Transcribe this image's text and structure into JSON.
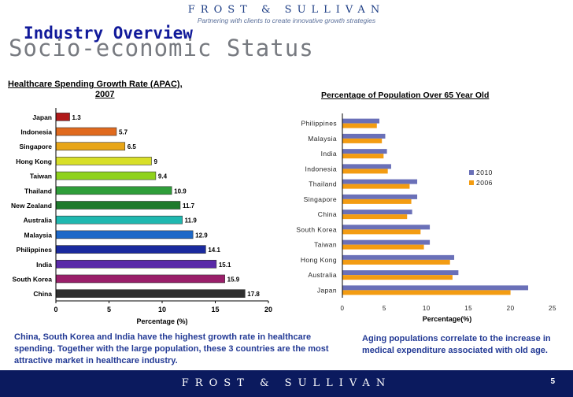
{
  "header": {
    "brand": "FROST & SULLIVAN",
    "tagline": "Partnering with clients to create innovative growth strategies",
    "title": "Industry Overview",
    "subtitle": "Socio-economic Status"
  },
  "chart_data": [
    {
      "type": "bar",
      "orientation": "horizontal",
      "title": "Healthcare Spending Growth Rate (APAC), 2007",
      "title_line1": "Healthcare Spending Growth Rate (APAC),",
      "title_line2": "2007",
      "xlabel": "Percentage (%)",
      "xlim": [
        0,
        20
      ],
      "xticks": [
        0,
        5,
        10,
        15,
        20
      ],
      "categories": [
        "Japan",
        "Indonesia",
        "Singapore",
        "Hong Kong",
        "Taiwan",
        "Thailand",
        "New Zealand",
        "Australia",
        "Malaysia",
        "Philippines",
        "India",
        "South Korea",
        "China"
      ],
      "values": [
        1.3,
        5.7,
        6.5,
        9,
        9.4,
        10.9,
        11.7,
        11.9,
        12.9,
        14.1,
        15.1,
        15.9,
        17.8
      ],
      "value_labels": [
        "1.3",
        "5.7",
        "6.5",
        "9",
        "9.4",
        "10.9",
        "11.7",
        "11.9",
        "12.9",
        "14.1",
        "15.1",
        "15.9",
        "17.8"
      ],
      "bar_colors": [
        "#b11a1a",
        "#e06a1e",
        "#e8a618",
        "#d8df28",
        "#8fd21c",
        "#2f9e3a",
        "#1e7a2c",
        "#20b8b0",
        "#1d68c8",
        "#1a2a9e",
        "#5a2aa8",
        "#9a1f6a",
        "#2f2f2f"
      ]
    },
    {
      "type": "bar",
      "orientation": "horizontal",
      "title": "Percentage of Population Over 65 Year Old",
      "xlabel": "Percentage(%)",
      "xlim": [
        0,
        25
      ],
      "xticks": [
        0,
        5,
        10,
        15,
        20,
        25
      ],
      "categories": [
        "Philippines",
        "Malaysia",
        "India",
        "Indonesia",
        "Thailand",
        "Singapore",
        "China",
        "South Korea",
        "Taiwan",
        "Hong Kong",
        "Australia",
        "Japan"
      ],
      "series": [
        {
          "name": "2010",
          "color": "#6a70b8",
          "values": [
            4.4,
            5.1,
            5.3,
            5.8,
            8.9,
            8.9,
            8.3,
            10.4,
            10.4,
            13.3,
            13.8,
            22.1
          ]
        },
        {
          "name": "2006",
          "color": "#f39c12",
          "values": [
            4.1,
            4.7,
            4.9,
            5.4,
            8.0,
            8.2,
            7.7,
            9.3,
            9.7,
            12.8,
            13.1,
            20.0
          ]
        }
      ],
      "legend_position": "right"
    }
  ],
  "captions": {
    "left": "China, South Korea and India have the highest growth rate in healthcare spending. Together with the large population, these 3 countries are the most attractive market in healthcare industry.",
    "right": "Aging populations correlate to the increase in medical expenditure associated with old age."
  },
  "footer": {
    "brand": "FROST & SULLIVAN",
    "page_number": "5"
  }
}
